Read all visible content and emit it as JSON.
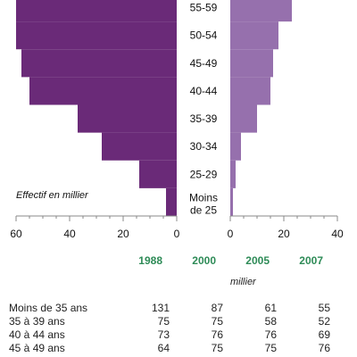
{
  "chart_data": {
    "type": "bar",
    "orientation": "horizontal",
    "categories": [
      "Moins de 25",
      "25-29",
      "30-34",
      "35-39",
      "40-44",
      "45-49",
      "50-54",
      "55-59"
    ],
    "series": [
      {
        "side": "left",
        "color": "#6a2a78",
        "values": [
          4,
          14,
          28,
          37,
          55,
          58,
          60,
          60
        ]
      },
      {
        "side": "right",
        "color": "#9670ad",
        "values": [
          1,
          2,
          4,
          10,
          15,
          16,
          18,
          23
        ]
      }
    ],
    "left_axis": {
      "ticks": [
        "60",
        "40",
        "20",
        "0"
      ],
      "range": [
        0,
        60
      ]
    },
    "right_axis": {
      "ticks": [
        "0",
        "20",
        "40"
      ],
      "range": [
        0,
        40
      ]
    },
    "annotation": "Effectif en millier"
  },
  "table": {
    "years": [
      "1988",
      "2000",
      "2005",
      "2007"
    ],
    "unit": "millier",
    "rows": [
      {
        "label": "Moins de 35 ans",
        "values": [
          "131",
          "87",
          "61",
          "55"
        ]
      },
      {
        "label": "35 à 39 ans",
        "values": [
          "75",
          "75",
          "58",
          "52"
        ]
      },
      {
        "label": "40 à 44 ans",
        "values": [
          "73",
          "76",
          "76",
          "69"
        ]
      },
      {
        "label": "45 à 49 ans",
        "values": [
          "64",
          "75",
          "75",
          "76"
        ]
      }
    ]
  }
}
